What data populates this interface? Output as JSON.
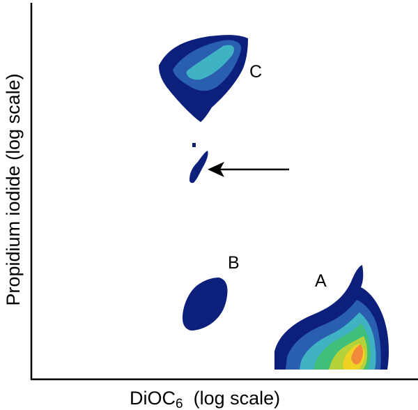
{
  "chart_data": {
    "type": "heatmap",
    "xlabel": {
      "main": "DiOC",
      "subscript": "6",
      "suffix": "  (log scale)"
    },
    "ylabel": "Propidium iodide (log scale)",
    "xscale": "log",
    "yscale": "log",
    "grid": false,
    "legend": "none",
    "populations": [
      {
        "label": "A",
        "peak_density": "high"
      },
      {
        "label": "B",
        "peak_density": "low"
      },
      {
        "label": "C",
        "peak_density": "medium"
      }
    ],
    "annotations": [
      {
        "type": "arrow",
        "target": "small intermediate population between B and C",
        "direction": "left"
      }
    ],
    "density_colors": [
      "#0c1f7a",
      "#2a5fb0",
      "#3fb3c4",
      "#3fbf7a",
      "#b5d23a",
      "#f0d225",
      "#f08a3a"
    ]
  }
}
